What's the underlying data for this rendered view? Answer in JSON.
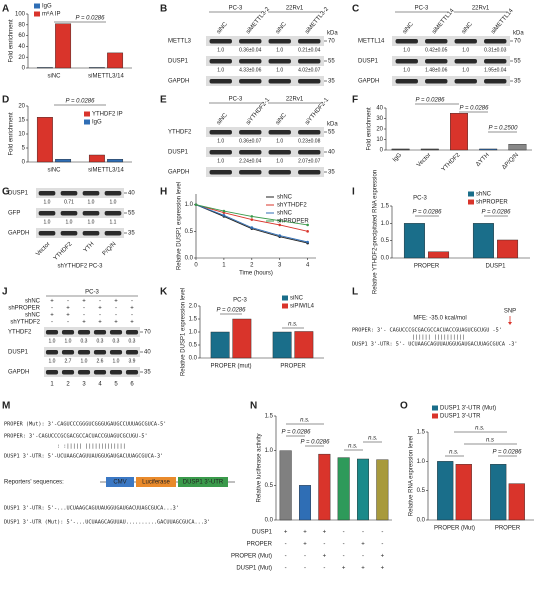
{
  "panels": [
    {
      "label": "A",
      "type": "bar",
      "ylabel": "Fold enrichment",
      "ylim": [
        0,
        100
      ],
      "yticks": [
        0,
        20,
        40,
        60,
        80,
        100
      ],
      "categories": [
        "siNC",
        "siMETTL3/14"
      ],
      "series": [
        {
          "name": "IgG",
          "color": "#2f6eb5",
          "values": [
            1,
            1
          ]
        },
        {
          "name": "m⁶A IP",
          "color": "#d9342b",
          "values": [
            82,
            28
          ]
        }
      ],
      "annotations": [
        "P = 0.0286"
      ]
    },
    {
      "label": "B",
      "type": "blot",
      "groups": [
        "PC-3",
        "22Rv1"
      ],
      "lanes": [
        "siNC",
        "siMETTL3-2",
        "siNC",
        "siMETTL3-2"
      ],
      "unit": "kDa",
      "rows": [
        {
          "name": "METTL3",
          "marker": 70,
          "quant": [
            "1.0",
            "0.36±0.04",
            "1.0",
            "0.21±0.04"
          ]
        },
        {
          "name": "DUSP1",
          "marker": 55,
          "quant": [
            "1.0",
            "4.33±0.06",
            "1.0",
            "4.02±0.07"
          ]
        },
        {
          "name": "GAPDH",
          "marker": 35
        }
      ]
    },
    {
      "label": "C",
      "type": "blot",
      "groups": [
        "PC-3",
        "22Rv1"
      ],
      "lanes": [
        "siNC",
        "siMETTL14",
        "siNC",
        "siMETTL14"
      ],
      "unit": "kDa",
      "rows": [
        {
          "name": "METTL14",
          "marker": 70,
          "quant": [
            "1.0",
            "0.42±0.05",
            "1.0",
            "0.31±0.03"
          ]
        },
        {
          "name": "DUSP1",
          "marker": 55,
          "quant": [
            "1.0",
            "1.48±0.06",
            "1.0",
            "1.95±0.04"
          ]
        },
        {
          "name": "GAPDH",
          "marker": 35
        }
      ]
    },
    {
      "label": "D",
      "type": "bar",
      "ylabel": "Fold enrichment",
      "ylim": [
        0,
        20
      ],
      "yticks": [
        0,
        5,
        10,
        15,
        20
      ],
      "categories": [
        "siNC",
        "siMETTL3/14"
      ],
      "series": [
        {
          "name": "YTHDF2 IP",
          "color": "#d9342b",
          "values": [
            16,
            2.5
          ]
        },
        {
          "name": "IgG",
          "color": "#2f6eb5",
          "values": [
            1,
            1
          ]
        }
      ],
      "annotations": [
        "P = 0.0286"
      ]
    },
    {
      "label": "E",
      "type": "blot",
      "groups": [
        "PC-3",
        "22Rv1"
      ],
      "lanes": [
        "siNC",
        "siYTHDF2-1",
        "siNC",
        "siYTHDF2-1"
      ],
      "unit": "kDa",
      "rows": [
        {
          "name": "YTHDF2",
          "marker": 55,
          "quant": [
            "1.0",
            "0.36±0.07",
            "1.0",
            "0.23±0.08"
          ]
        },
        {
          "name": "DUSP1",
          "marker": 40,
          "quant": [
            "1.0",
            "2.24±0.04",
            "1.0",
            "2.07±0.07"
          ]
        },
        {
          "name": "GAPDH",
          "marker": 35
        }
      ]
    },
    {
      "label": "F",
      "type": "bar",
      "ylabel": "Fold enrichment",
      "ylim": [
        0,
        40
      ],
      "yticks": [
        0,
        10,
        20,
        30,
        40
      ],
      "categories": [
        "IgG",
        "Vector",
        "YTHDF2",
        "ΔYTH",
        "ΔP/Q/N"
      ],
      "values": [
        1,
        1,
        35,
        1,
        5.5
      ],
      "colors": [
        "#555555",
        "#555555",
        "#d9342b",
        "#2f6eb5",
        "#888888"
      ],
      "annotations": [
        "P = 0.0286",
        "P = 0.0286",
        "P = 0.2500"
      ]
    },
    {
      "label": "G",
      "type": "blot",
      "lanes": [
        "Vector",
        "YTHDF2",
        "YTH",
        "P/Q/N"
      ],
      "caption": "shYTHDF2 PC-3",
      "rows": [
        {
          "name": "DUSP1",
          "marker": 40,
          "quant": [
            "1.0",
            "0.71",
            "1.0",
            "1.0"
          ]
        },
        {
          "name": "GFP",
          "marker": 55,
          "quant": [
            "1.0",
            "1.0",
            "1.0",
            "1.1"
          ]
        },
        {
          "name": "GAPDH",
          "marker": 35
        }
      ]
    },
    {
      "label": "H",
      "type": "line",
      "ylabel": "Relative DUSP1 expression level",
      "xlabel": "Time (hours)",
      "xlim": [
        0,
        4.3
      ],
      "xticks": [
        0,
        1,
        2,
        3,
        4
      ],
      "ylim": [
        0,
        1.2
      ],
      "yticks": [
        {
          "value": 0,
          "label": "0.0"
        },
        {
          "value": 0.5,
          "label": "0.5"
        },
        {
          "value": 1,
          "label": "1.0"
        }
      ],
      "x": [
        0,
        1,
        2,
        3,
        4
      ],
      "series": [
        {
          "name": "shNC",
          "color": "#222222",
          "values": [
            1,
            0.78,
            0.55,
            0.4,
            0.28
          ]
        },
        {
          "name": "shYTHDF2",
          "color": "#d9342b",
          "values": [
            1,
            0.85,
            0.72,
            0.62,
            0.5
          ]
        },
        {
          "name": "shNC",
          "color": "#2f6eb5",
          "values": [
            1,
            0.8,
            0.57,
            0.42,
            0.3
          ]
        },
        {
          "name": "shPROPER",
          "color": "#3a9a4b",
          "values": [
            1,
            0.88,
            0.78,
            0.7,
            0.62
          ]
        }
      ]
    },
    {
      "label": "I",
      "type": "bar",
      "title": "PC-3",
      "ylabel": "Relative YTHDF2-precipitated RNA expression",
      "ylim": [
        0,
        1.5
      ],
      "yticks": [
        {
          "value": 0,
          "label": "0.0"
        },
        {
          "value": 0.5,
          "label": "0.5"
        },
        {
          "value": 1,
          "label": "1.0"
        },
        {
          "value": 1.5,
          "label": "1.5"
        }
      ],
      "categories": [
        "PROPER",
        "DUSP1"
      ],
      "series": [
        {
          "name": "shNC",
          "color": "#1a6e8a",
          "values": [
            1.0,
            1.0
          ]
        },
        {
          "name": "shPROPER",
          "color": "#d9342b",
          "values": [
            0.18,
            0.52
          ]
        }
      ],
      "annotations": [
        "P = 0.0286",
        "P = 0.0286"
      ]
    },
    {
      "label": "J",
      "type": "blot",
      "title": "PC-3",
      "conditions": [
        {
          "name": "shNC",
          "marks": [
            "+",
            "-",
            "+",
            "-",
            "+",
            "-"
          ]
        },
        {
          "name": "shPROPER",
          "marks": [
            "-",
            "+",
            "-",
            "+",
            "-",
            "+"
          ]
        },
        {
          "name": "shNC",
          "marks": [
            "+",
            "+",
            "-",
            "-",
            "-",
            "-"
          ]
        },
        {
          "name": "shYTHDF2",
          "marks": [
            "-",
            "-",
            "+",
            "+",
            "+",
            "+"
          ]
        }
      ],
      "rows": [
        {
          "name": "YTHDF2",
          "marker": 70,
          "quant": [
            "1.0",
            "1.0",
            "0.3",
            "0.3",
            "0.3",
            "0.3"
          ]
        },
        {
          "name": "DUSP1",
          "marker": 40,
          "quant": [
            "1.0",
            "2.7",
            "1.0",
            "2.6",
            "1.0",
            "3.9"
          ]
        },
        {
          "name": "GAPDH",
          "marker": 35
        }
      ],
      "lane_numbers": [
        1,
        2,
        3,
        4,
        5,
        6
      ]
    },
    {
      "label": "K",
      "type": "bar",
      "title": "PC-3",
      "ylabel": "Relative DUSP1 expression level",
      "ylim": [
        0,
        2
      ],
      "yticks": [
        {
          "value": 0,
          "label": "0.0"
        },
        {
          "value": 0.5,
          "label": "0.5"
        },
        {
          "value": 1,
          "label": "1.0"
        },
        {
          "value": 1.5,
          "label": "1.5"
        },
        {
          "value": 2,
          "label": "2.0"
        }
      ],
      "categories": [
        "PROPER (mut)",
        "PROPER"
      ],
      "series": [
        {
          "name": "siNC",
          "color": "#1a6e8a",
          "values": [
            1.0,
            1.0
          ]
        },
        {
          "name": "siPIWIL4",
          "color": "#d9342b",
          "values": [
            1.5,
            1.02
          ]
        }
      ],
      "annotations": [
        "P = 0.0286",
        "n.s."
      ]
    },
    {
      "label": "L",
      "type": "text",
      "lines": [
        "MFE: -35.0 kcal/mol",
        "SNP",
        "PROPER: 3'- CAGUCCCGCGACGCCACUACCGUAGUCGCUGU -5'",
        "|||||| ||||||||||",
        "DUSP1 3'-UTR: 5'- UCUAAGCAGUUAUGGUGAUGACUUAGCGUCA -3'"
      ]
    },
    {
      "label": "M",
      "type": "text",
      "lines": [
        "PROPER (Mut): 3'-CAGUCCCGGGUCGGGUGAUGCCUUUAGCGUCA-5'",
        "PROPER: 3'-CAGUCCCGCGACGCCACUACCGUAGUCGCUGU-5'",
        ": :||||| |||||||||||||",
        "DUSP1 3'-UTR: 5'-UCUAAGCAGUUAUGGUGAUGACUUAGCGUCA-3'",
        "Reporters' sequences:",
        "CMV",
        "Luciferase",
        "DUSP1 3'-UTR",
        "DUSP1 3'-UTR: 5'-...UCUAAGCAGUUAUGGUGAUGACUUAGCGUCA...3'",
        "DUSP1 3'-UTR (Mut): 5'-...UCUAAGCAGUUAU..........GACUUAGCGUCA...3'"
      ]
    },
    {
      "label": "N",
      "type": "bar",
      "ylabel": "Relative luciferase activity",
      "ylim": [
        0,
        1.5
      ],
      "yticks": [
        {
          "value": 0,
          "label": "0.0"
        },
        {
          "value": 0.5,
          "label": "0.5"
        },
        {
          "value": 1,
          "label": "1.0"
        },
        {
          "value": 1.5,
          "label": "1.5"
        }
      ],
      "values": [
        1.0,
        0.5,
        0.95,
        0.9,
        0.88,
        0.87
      ],
      "colors": [
        "#808080",
        "#2f6eb5",
        "#d9342b",
        "#2e9a5a",
        "#1a8a8a",
        "#a89a3c"
      ],
      "table": [
        {
          "name": "DUSP1",
          "marks": [
            "+",
            "+",
            "+",
            "-",
            "-",
            "-"
          ]
        },
        {
          "name": "PROPER",
          "marks": [
            "-",
            "+",
            "-",
            "-",
            "+",
            "-"
          ]
        },
        {
          "name": "PROPER (Mut)",
          "marks": [
            "-",
            "-",
            "+",
            "-",
            "-",
            "+"
          ]
        },
        {
          "name": "DUSP1 (Mut)",
          "marks": [
            "-",
            "-",
            "-",
            "+",
            "+",
            "+"
          ]
        }
      ],
      "annotations": [
        "n.s.",
        "P = 0.0286",
        "P = 0.0286",
        "n.s.",
        "n.s."
      ]
    },
    {
      "label": "O",
      "type": "bar",
      "ylabel": "Relative RNA expression level",
      "ylim": [
        0,
        1.5
      ],
      "yticks": [
        {
          "value": 0,
          "label": "0.0"
        },
        {
          "value": 0.5,
          "label": "0.5"
        },
        {
          "value": 1,
          "label": "1.0"
        },
        {
          "value": 1.5,
          "label": "1.5"
        }
      ],
      "categories": [
        "PROPER (Mut)",
        "PROPER"
      ],
      "series": [
        {
          "name": "DUSP1 3'-UTR (Mut)",
          "color": "#1a6e8a",
          "values": [
            1.0,
            0.95
          ]
        },
        {
          "name": "DUSP1 3'-UTR",
          "color": "#d9342b",
          "values": [
            0.95,
            0.62
          ]
        }
      ],
      "annotations": [
        "n.s.",
        "n.s.",
        "n.s",
        "P = 0.0286"
      ]
    }
  ]
}
